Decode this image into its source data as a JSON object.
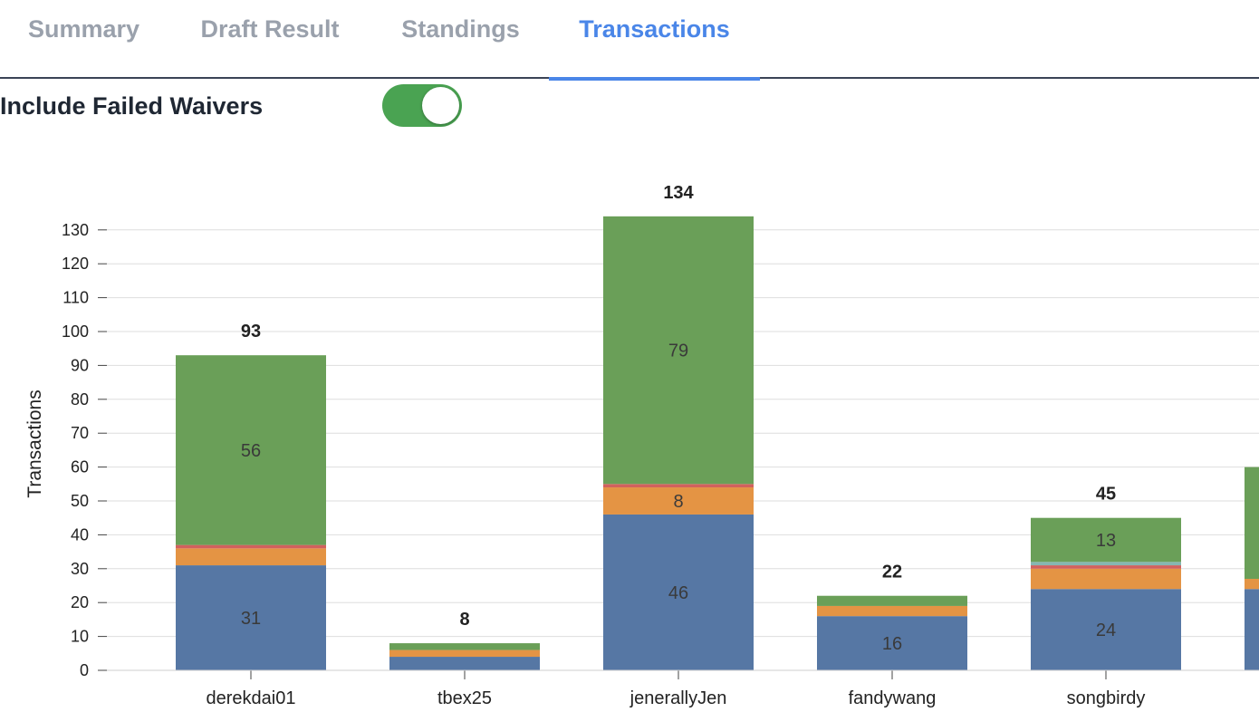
{
  "tabs": [
    {
      "label": "Summary",
      "active": false
    },
    {
      "label": "Draft Result",
      "active": false
    },
    {
      "label": "Standings",
      "active": false
    },
    {
      "label": "Transactions",
      "active": true
    }
  ],
  "toggle": {
    "label": "Include Failed Waivers",
    "on": true,
    "color": "#4aa352"
  },
  "chart_data": {
    "type": "bar",
    "stacked": true,
    "ylabel": "Transactions",
    "xlabel": "",
    "ylim": [
      0,
      134
    ],
    "yticks": [
      0,
      10,
      20,
      30,
      40,
      50,
      60,
      70,
      80,
      90,
      100,
      110,
      120,
      130
    ],
    "grid": true,
    "categories": [
      "derekdai01",
      "tbex25",
      "jenerallyJen",
      "fandywang",
      "songbirdy",
      ""
    ],
    "totals": [
      "93",
      "8",
      "134",
      "22",
      "45",
      ""
    ],
    "series": [
      {
        "color": "#5677a4",
        "values": [
          31,
          4,
          46,
          16,
          24,
          24
        ],
        "labels": [
          "31",
          "",
          "46",
          "16",
          "24",
          ""
        ]
      },
      {
        "color": "#e49444",
        "values": [
          5,
          2,
          8,
          3,
          6,
          3
        ],
        "labels": [
          "",
          "",
          "8",
          "",
          "",
          ""
        ]
      },
      {
        "color": "#d1615d",
        "values": [
          1,
          0,
          1,
          0,
          1,
          0
        ],
        "labels": [
          "",
          "",
          "",
          "",
          "",
          ""
        ]
      },
      {
        "color": "#85b6b2",
        "values": [
          0,
          0,
          0,
          0,
          1,
          0
        ],
        "labels": [
          "",
          "",
          "",
          "",
          "",
          ""
        ]
      },
      {
        "color": "#6a9f58",
        "values": [
          56,
          2,
          79,
          3,
          13,
          33
        ],
        "labels": [
          "56",
          "",
          "79",
          "",
          "13",
          ""
        ]
      }
    ]
  }
}
